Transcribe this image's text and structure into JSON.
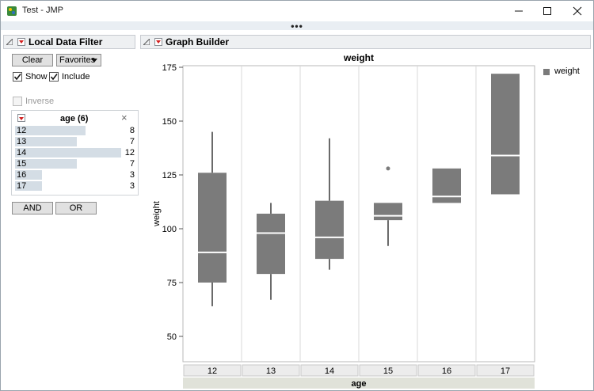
{
  "window": {
    "title": "Test - JMP",
    "grip_dots": "•••"
  },
  "filter": {
    "header": "Local Data Filter",
    "clear_label": "Clear",
    "favorites_label": "Favorites",
    "show_label": "Show",
    "show_checked": true,
    "include_label": "Include",
    "include_checked": true,
    "inverse_label": "Inverse",
    "inverse_checked": false,
    "column_title": "age (6)",
    "close_glyph": "×",
    "levels": [
      {
        "label": "12",
        "count": "8"
      },
      {
        "label": "13",
        "count": "7"
      },
      {
        "label": "14",
        "count": "12"
      },
      {
        "label": "15",
        "count": "7"
      },
      {
        "label": "16",
        "count": "3"
      },
      {
        "label": "17",
        "count": "3"
      }
    ],
    "and_label": "AND",
    "or_label": "OR"
  },
  "graph": {
    "header": "Graph Builder",
    "legend_label": "weight"
  },
  "chart_data": {
    "type": "box",
    "title": "weight",
    "xlabel": "age",
    "ylabel": "weight",
    "categories": [
      "12",
      "13",
      "14",
      "15",
      "16",
      "17"
    ],
    "ylim": [
      40,
      175
    ],
    "yticks": [
      50,
      75,
      100,
      125,
      150,
      175
    ],
    "boxes": [
      {
        "category": "12",
        "whisker_low": 64,
        "q1": 75,
        "median": 89,
        "q3": 126,
        "whisker_high": 145,
        "outliers": []
      },
      {
        "category": "13",
        "whisker_low": 67,
        "q1": 79,
        "median": 98,
        "q3": 107,
        "whisker_high": 112,
        "outliers": []
      },
      {
        "category": "14",
        "whisker_low": 81,
        "q1": 86,
        "median": 96,
        "q3": 113,
        "whisker_high": 142,
        "outliers": []
      },
      {
        "category": "15",
        "whisker_low": 92,
        "q1": 104,
        "median": 106,
        "q3": 112,
        "whisker_high": 112,
        "outliers": [
          128
        ]
      },
      {
        "category": "16",
        "whisker_low": 112,
        "q1": 112,
        "median": 115,
        "q3": 128,
        "whisker_high": 128,
        "outliers": []
      },
      {
        "category": "17",
        "whisker_low": 116,
        "q1": 116,
        "median": 134,
        "q3": 172,
        "whisker_high": 172,
        "outliers": []
      }
    ],
    "grid": "vertical",
    "legend": "right",
    "colors": {
      "box": "#7b7b7b",
      "median": "#ffffff",
      "whisker": "#6a6a6a"
    }
  }
}
